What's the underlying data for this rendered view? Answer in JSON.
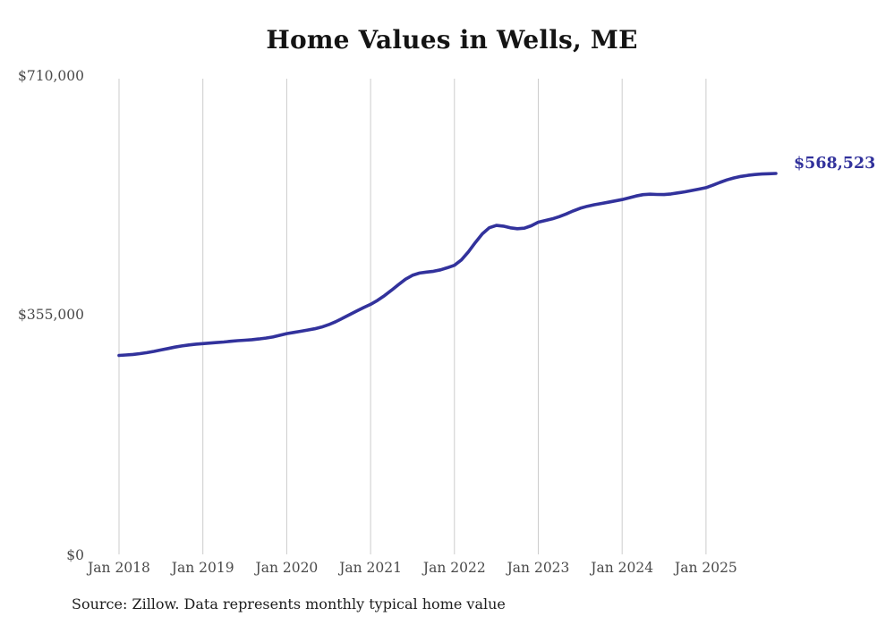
{
  "title": "Home Values in Wells, ME",
  "final_value_label": "$568,523",
  "source_note": "Source: Zillow. Data represents monthly typical home value",
  "colors": {
    "line": "#32329c",
    "final_label": "#32329c",
    "gridline": "#cccccc",
    "axis_text": "#4a4a4a",
    "title_text": "#141414"
  },
  "chart_data": {
    "type": "line",
    "title": "Home Values in Wells, ME",
    "series_name": "Monthly typical home value (Zillow)",
    "x_range": "Jan 2018 to Nov 2025, monthly",
    "x_tick_labels": [
      "Jan 2018",
      "Jan 2019",
      "Jan 2020",
      "Jan 2021",
      "Jan 2022",
      "Jan 2023",
      "Jan 2024",
      "Jan 2025"
    ],
    "y_tick_labels": [
      "$0",
      "$355,000",
      "$710,000"
    ],
    "ylim": [
      0,
      710000
    ],
    "grid": "vertical-only",
    "legend": "none",
    "final_value": 568523,
    "values": [
      297000,
      297600,
      298400,
      299600,
      301100,
      303000,
      305100,
      307200,
      309300,
      311100,
      312600,
      313700,
      314500,
      315300,
      316100,
      317000,
      318000,
      318900,
      319700,
      320500,
      321500,
      322800,
      324500,
      327000,
      329500,
      331300,
      333000,
      334800,
      336700,
      339200,
      342800,
      347300,
      352400,
      357800,
      363100,
      368300,
      373200,
      379200,
      386200,
      394200,
      402700,
      410600,
      416500,
      419900,
      421300,
      422500,
      424700,
      427900,
      431500,
      439500,
      451500,
      465500,
      478500,
      487500,
      491000,
      489900,
      487400,
      486000,
      486800,
      490500,
      495800,
      498300,
      500800,
      504100,
      508100,
      512600,
      516600,
      519600,
      521800,
      523700,
      525600,
      527600,
      529600,
      532100,
      534900,
      536900,
      537600,
      537200,
      537000,
      538000,
      539600,
      541200,
      543200,
      545200,
      547300,
      551000,
      555200,
      558900,
      561900,
      564100,
      565700,
      566900,
      567700,
      568200,
      568523
    ]
  }
}
